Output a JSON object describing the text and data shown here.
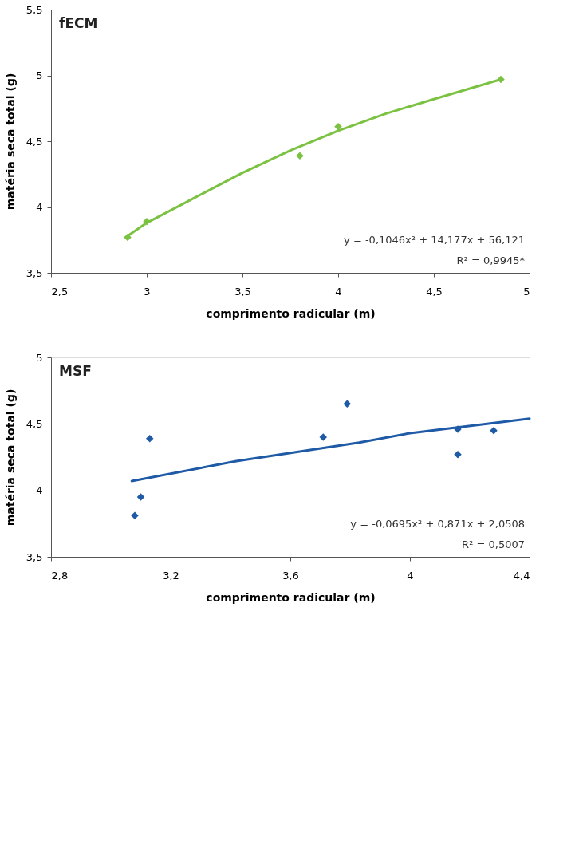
{
  "chart_data": [
    {
      "type": "scatter",
      "title": "fECM",
      "xlabel": "comprimento radicular (m)",
      "ylabel": "matéria seca total (g)",
      "xlim": [
        2.5,
        5
      ],
      "xticks": [
        {
          "value": 2.5,
          "label": "2,5"
        },
        3,
        {
          "value": 3.5,
          "label": "3,5"
        },
        4,
        {
          "value": 4.5,
          "label": "4,5"
        },
        5
      ],
      "ylim": [
        3.5,
        5.5
      ],
      "yticks": [
        {
          "value": 3.5,
          "label": "3,5"
        },
        4,
        {
          "value": 4.5,
          "label": "4,5"
        },
        5,
        {
          "value": 5.5,
          "label": "5,5"
        }
      ],
      "grid": false,
      "series": [
        {
          "marker": "diamond",
          "color": "#7cc242",
          "x": [
            2.9,
            3.0,
            3.8,
            4.0,
            4.85
          ],
          "values": [
            3.77,
            3.89,
            4.39,
            4.61,
            4.97
          ]
        },
        {
          "type": "line",
          "marker": "none",
          "line_style": "solid",
          "color": "#7cc242",
          "x": [
            2.9,
            3.0,
            3.25,
            3.5,
            3.75,
            4.0,
            4.25,
            4.5,
            4.85
          ],
          "values": [
            3.78,
            3.88,
            4.07,
            4.26,
            4.43,
            4.58,
            4.71,
            4.82,
            4.97
          ]
        }
      ],
      "annotations": [
        "y = -0,1046x² + 14,177x + 56,121",
        "R² = 0,9945*"
      ]
    },
    {
      "type": "scatter",
      "title": "MSF",
      "xlabel": "comprimento radicular (m)",
      "ylabel": "matéria seca total (g)",
      "xlim": [
        2.8,
        4.4
      ],
      "xticks": [
        {
          "value": 2.8,
          "label": "2,8"
        },
        {
          "value": 3.2,
          "label": "3,2"
        },
        {
          "value": 3.6,
          "label": "3,6"
        },
        4,
        {
          "value": 4.4,
          "label": "4,4"
        }
      ],
      "ylim": [
        3.5,
        5
      ],
      "yticks": [
        {
          "value": 3.5,
          "label": "3,5"
        },
        4,
        {
          "value": 4.5,
          "label": "4,5"
        },
        5
      ],
      "grid": false,
      "series": [
        {
          "marker": "diamond",
          "color": "#1f5aa6",
          "x": [
            3.08,
            3.1,
            3.13,
            3.71,
            3.79,
            4.16,
            4.16,
            4.28
          ],
          "values": [
            3.81,
            3.95,
            4.39,
            4.4,
            4.65,
            4.46,
            4.27,
            4.45
          ]
        },
        {
          "type": "line",
          "marker": "none",
          "line_style": "solid",
          "color": "#1f5aa6",
          "x": [
            3.07,
            3.42,
            3.83,
            4.0,
            4.4
          ],
          "values": [
            4.07,
            4.22,
            4.36,
            4.43,
            4.54
          ]
        }
      ],
      "annotations": [
        "y = -0,0695x² + 0,871x + 2,0508",
        "R² = 0,5007"
      ]
    }
  ]
}
